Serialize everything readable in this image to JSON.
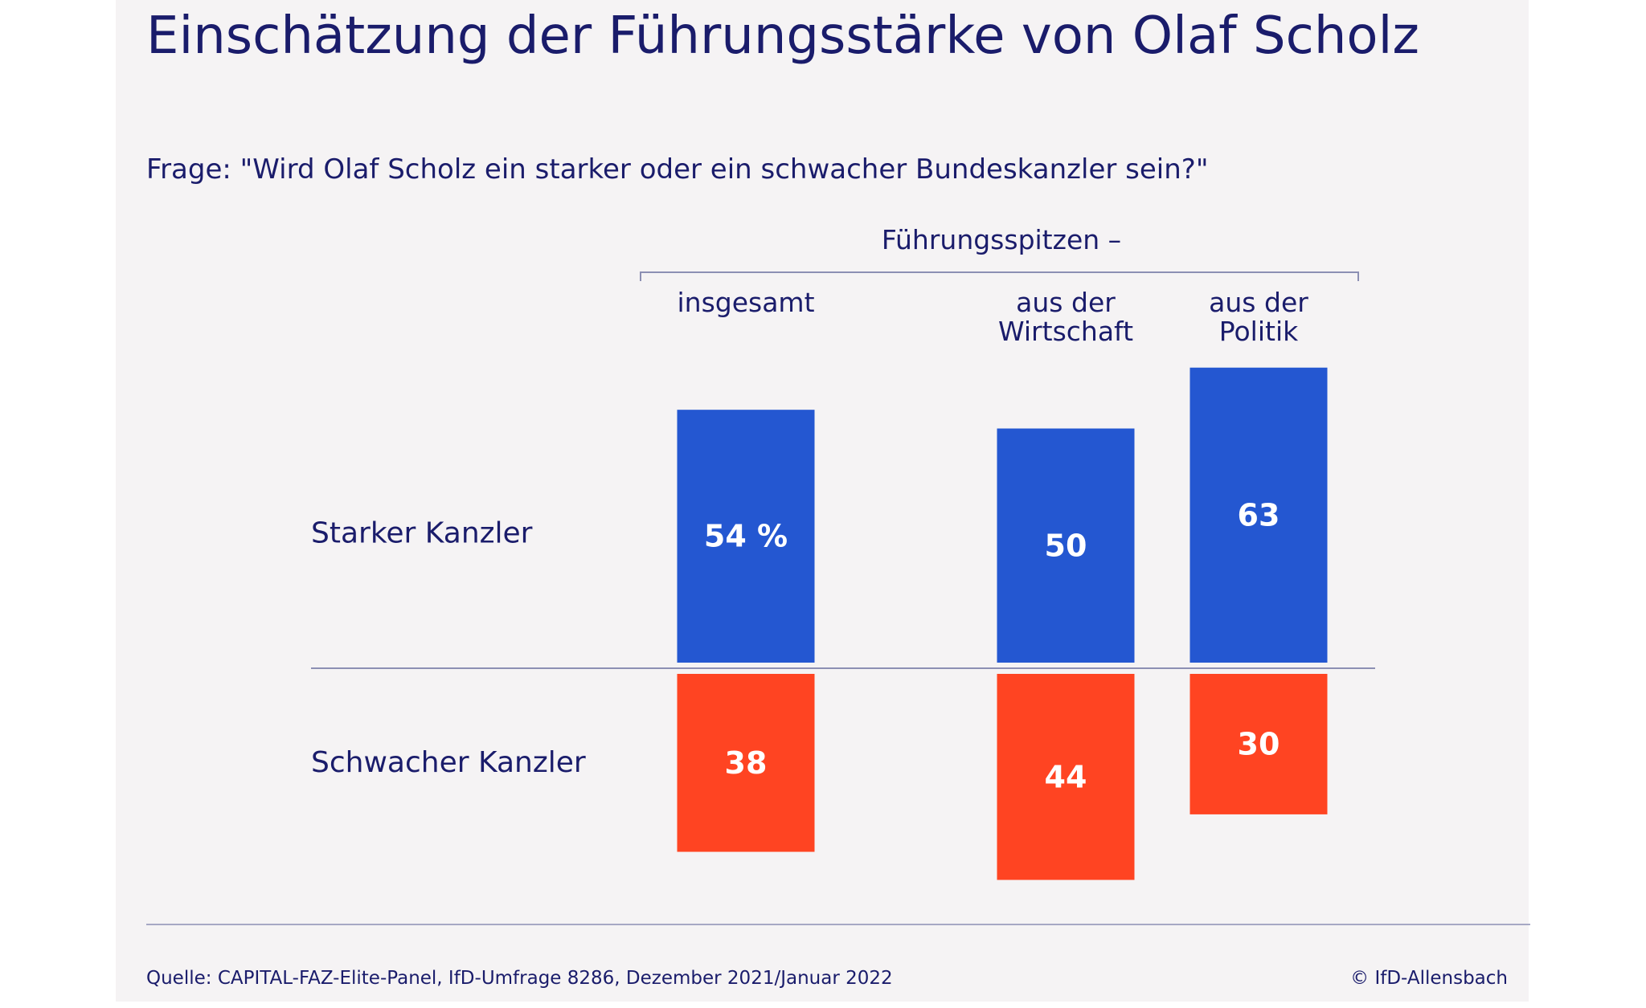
{
  "title": "Einschätzung der Führungsstärke von Olaf Scholz",
  "question": "Frage: \"Wird Olaf Scholz ein starker oder ein schwacher Bundeskanzler sein?\"",
  "group_label": "Führungsspitzen –",
  "footer": {
    "source": "Quelle: CAPITAL-FAZ-Elite-Panel, IfD-Umfrage 8286, Dezember 2021/Januar 2022",
    "copyright": "© IfD-Allensbach"
  },
  "colors": {
    "background": "#f5f3f4",
    "text": "#1a1c6b",
    "strong": "#2457d1",
    "weak": "#ff4422",
    "rule": "#8c8fb3"
  },
  "chart_data": {
    "type": "bar",
    "categories": [
      [
        "insgesamt"
      ],
      [
        "aus der",
        "Wirtschaft"
      ],
      [
        "aus der",
        "Politik"
      ]
    ],
    "series": [
      {
        "name": "Starker Kanzler",
        "values": [
          54,
          50,
          63
        ],
        "labels": [
          "54 %",
          "50",
          "63"
        ],
        "direction": "up"
      },
      {
        "name": "Schwacher Kanzler",
        "values": [
          38,
          44,
          30
        ],
        "labels": [
          "38",
          "44",
          "30"
        ],
        "direction": "down"
      }
    ],
    "unit": "%",
    "grid": false,
    "legend": "none"
  }
}
